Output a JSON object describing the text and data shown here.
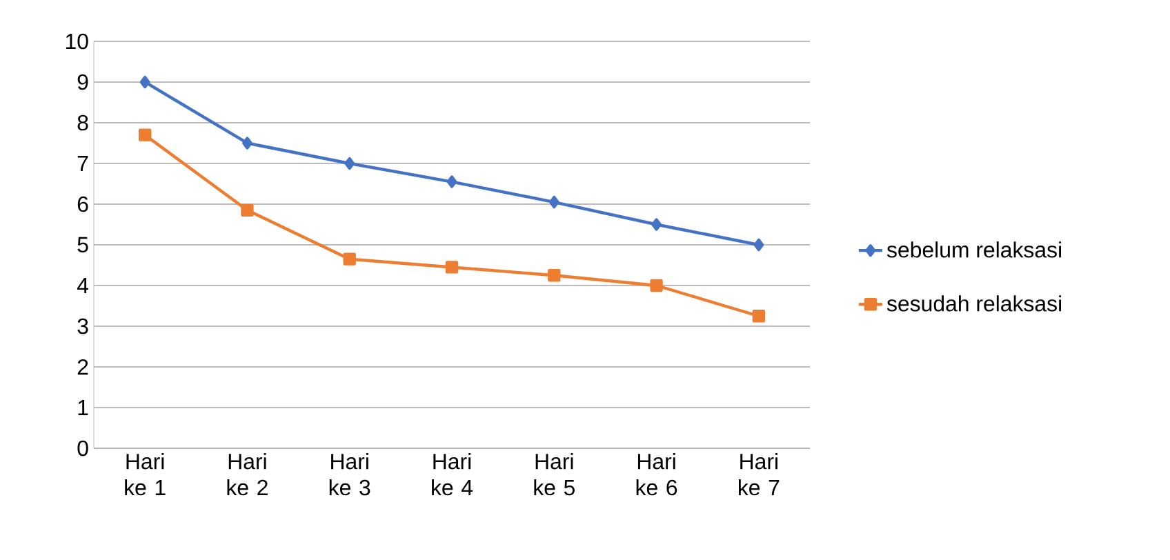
{
  "chart_data": {
    "type": "line",
    "categories": [
      "Hari ke 1",
      "Hari ke 2",
      "Hari ke 3",
      "Hari ke 4",
      "Hari ke 5",
      "Hari ke 6",
      "Hari ke 7"
    ],
    "series": [
      {
        "name": "sebelum relaksasi",
        "color": "#4472c4",
        "marker": "diamond",
        "values": [
          9,
          7.5,
          7,
          6.55,
          6.05,
          5.5,
          5
        ]
      },
      {
        "name": "sesudah relaksasi",
        "color": "#ed7d31",
        "marker": "square",
        "values": [
          7.7,
          5.85,
          4.65,
          4.45,
          4.25,
          4,
          3.25
        ]
      }
    ],
    "ylim": [
      0,
      10
    ],
    "yticks": [
      0,
      1,
      2,
      3,
      4,
      5,
      6,
      7,
      8,
      9,
      10
    ],
    "grid": "y",
    "legend": "right",
    "line_style": "solid"
  }
}
